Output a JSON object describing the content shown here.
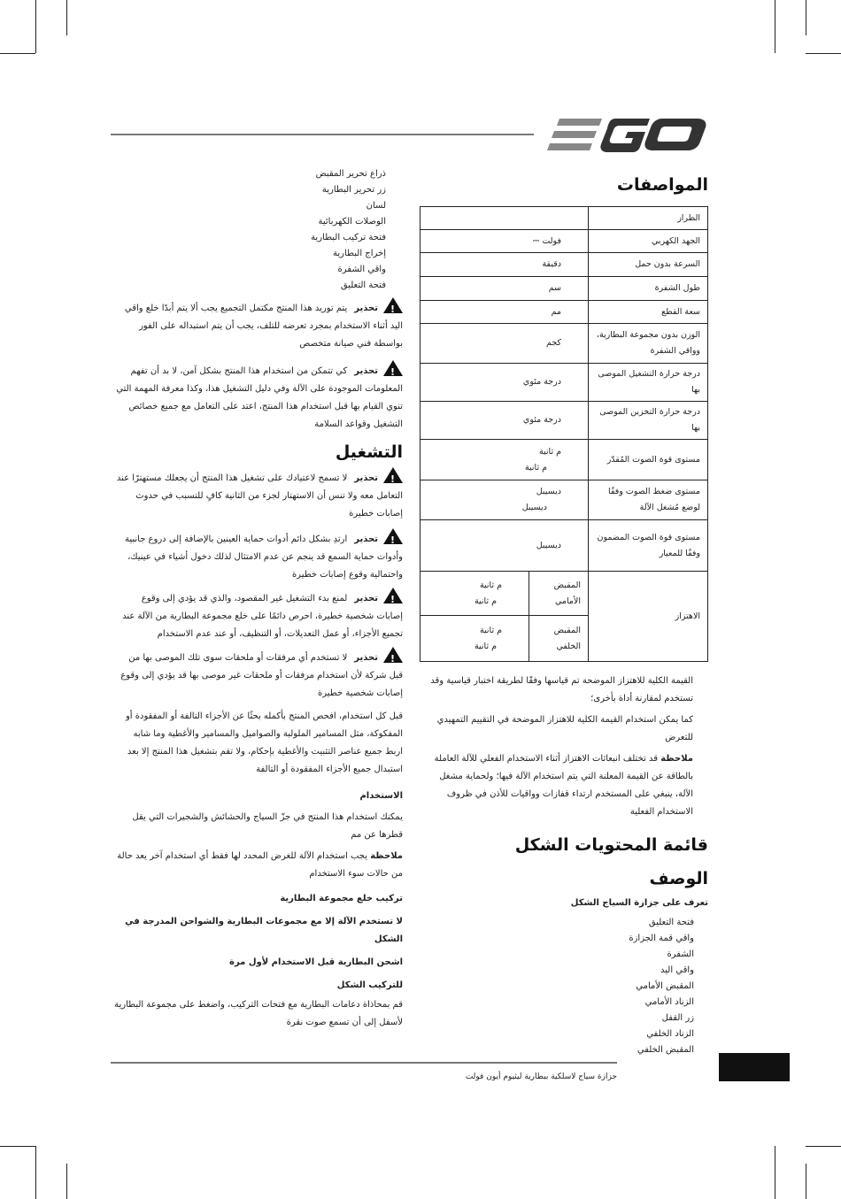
{
  "brand": {
    "logo_text": "EGO"
  },
  "specs": {
    "title": "المواصفات",
    "rows": [
      {
        "label": "الطراز",
        "value": ""
      },
      {
        "label": "الجهد الكهربي",
        "value": "فولت ⎓"
      },
      {
        "label": "السرعة بدون حمل",
        "value": "دقيقة"
      },
      {
        "label": "طول الشفرة",
        "value": "سم"
      },
      {
        "label": "سعة القطع",
        "value": "مم"
      },
      {
        "label": "الوزن  بدون مجموعة البطارية، وواقي الشفرة",
        "value": "كجم"
      },
      {
        "label": "درجة حرارة التشغيل الموصى بها",
        "value": "درجة مئوي"
      },
      {
        "label": "درجة حرارة التخزين الموصى بها",
        "value": "درجة مئوي"
      },
      {
        "label": "مستوى قوة الصوت المُقدّر",
        "value": "م ثانية",
        "value2": "م ثانية"
      },
      {
        "label": "مستوى ضغط الصوت وفقًا لوضع مُشغل الآلة",
        "value": "ديسيبل",
        "value2": "ديسيبل"
      },
      {
        "label": "مستوى قوة الصوت المضمون وفقًا للمعيار",
        "value": "ديسيبل"
      }
    ],
    "vibration": {
      "label": "الاهتزاز",
      "front": {
        "label": "المقبض الأمامي",
        "value": "م ثانية",
        "value2": "م ثانية"
      },
      "rear": {
        "label": "المقبض الخلفي",
        "value": "م ثانية",
        "value2": "م ثانية"
      }
    },
    "notes": [
      "القيمة الكلية للاهتزاز الموضحة تم قياسها وفقًا لطريقة اختبار قياسية وقد تستخدم لمقارنة أداة بأخرى؛",
      "كما يمكن استخدام القيمة الكلية للاهتزاز الموضحة في التقييم التمهيدي للتعرض"
    ],
    "note_label": "ملاحظة",
    "note_text": "قد تختلف انبعاثات الاهتزاز أثناء الاستخدام الفعلي للآلة العاملة بالطاقة عن القيمة المعلنة التي يتم استخدام الآلة فيها؛ ولحماية مشغل الآلة، ينبغي على المستخدم ارتداء قفازات وواقيات للأذن في ظروف الاستخدام الفعلية"
  },
  "contents": {
    "title": "قائمة المحتويات  الشكل"
  },
  "description": {
    "title": "الوصف",
    "subtitle": "تعرف على جزازة السياج  الشكل",
    "items": [
      "فتحة التعليق",
      "واقي قمة الجزازة",
      "الشفرة",
      "واقي اليد",
      "المقبض الأمامي",
      "الزناد الأمامي",
      "زر القفل",
      "الزناد الخلفي",
      "المقبض الخلفي"
    ]
  },
  "left_list": [
    "ذراع تحرير المقبض",
    "زر تحرير البطارية",
    "لسان",
    "الوصلات الكهربائية",
    "فتحة تركيب البطارية",
    "إخراج البطارية",
    "واقي الشفرة",
    "فتحة التعليق"
  ],
  "warning_label": "تحذير",
  "warnings_top": [
    "يتم توريد هذا المنتج مكتمل التجميع  يجب ألا يتم أبدًا خلع واقي اليد أثناء الاستخدام  بمجرد تعرضه للتلف، يجب أن يتم استبداله على الفور بواسطة فني صيانة متخصص",
    "كي تتمكن من استخدام هذا المنتج بشكل آمن، لا بد أن تفهم المعلومات الموجودة على الآلة وفي دليل التشغيل هذا، وكذا معرفة المهمة التي تنوي القيام بها  قبل استخدام هذا المنتج، اعتد على التعامل مع جميع خصائص التشغيل وقواعد السلامة"
  ],
  "operation": {
    "title": "التشغيل",
    "warnings": [
      "لا تسمح لاعتيادك على تشغيل هذا المنتج أن يجعلك مستهترًا عند التعامل معه  ولا تنس أن الاستهتار لجزء من الثانية كافٍ للتسبب في حدوث إصابات خطيرة",
      "ارتدِ بشكل دائم أدوات حماية العينين بالإضافة إلى دروع جانبية وأدوات حماية السمع  قد ينجم عن عدم الامتثال لذلك دخول أشياء في عينيك، واحتمالية وقوع إصابات خطيرة",
      "لمنع بدء التشغيل غير المقصود، والذي قد يؤدي إلى وقوع إصابات شخصية خطيرة، احرص دائمًا على خلع مجموعة البطارية من الآلة عند تجميع الأجزاء، أو عمل التعديلات، أو التنظيف، أو عند عدم الاستخدام",
      "لا تستخدم أي مرفقات أو ملحقات سوى تلك الموصى بها من قبل شركة    لأن استخدام مرفقات أو ملحقات غير موصى بها قد يؤدي إلى وقوع إصابات شخصية خطيرة"
    ],
    "inspect": "قبل كل استخدام، افحص المنتج بأكمله بحثًا عن الأجزاء التالفة أو المفقودة أو المفكوكة، مثل المسامير الملولبة والصواميل والمسامير والأغطية وما شابه  اربط جميع عناصر التثبيت والأغطية بإحكام، ولا تقم بتشغيل هذا المنتج إلا بعد استبدال جميع الأجزاء المفقودة أو التالفة",
    "usage_heading": "الاستخدام",
    "usage_text": "يمكنك استخدام هذا المنتج في جزّ السياج والحشائش والشجيرات التي يقل قطرها عن      مم",
    "note_label": "ملاحظة",
    "note_text": "يجب استخدام الآلة للغرض المحدد لها فقط  أي استخدام آخر يعد حالة من حالات سوء الاستخدام",
    "battery_heading": "تركيب خلع مجموعة البطارية",
    "battery_warning": "لا تستخدم الآلة إلا مع مجموعات البطارية والشواحن المدرجة في الشكل",
    "charge": "اشحن البطارية قبل الاستخدام لأول مرة",
    "install_heading": "للتركيب  الشكل",
    "install_text": "قم بمحاذاة دعامات البطارية مع فتحات التركيب، واضغط على مجموعة البطارية لأسفل إلى أن تسمع صوت  نقرة"
  },
  "footer": {
    "text": "جزازة سياج لاسلكية ببطارية ليثيوم أيون     فولت",
    "page_box_color": "#111111"
  }
}
